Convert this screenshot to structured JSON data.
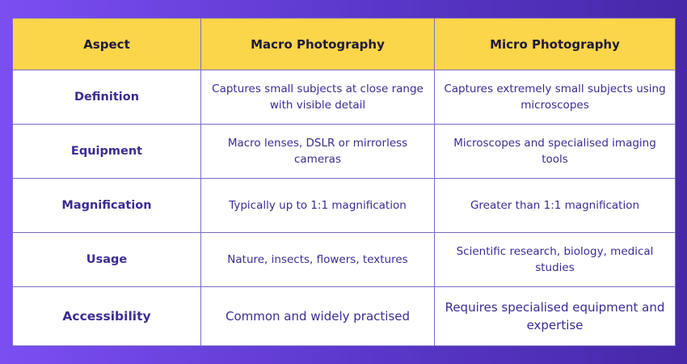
{
  "table": {
    "header": [
      "Aspect",
      "Macro Photography",
      "Micro Photography"
    ],
    "rows": [
      [
        "Definition",
        "Captures small subjects at close range with visible detail",
        "Captures extremely small subjects using microscopes"
      ],
      [
        "Equipment",
        "Macro lenses, DSLR or mirrorless cameras",
        "Microscopes and specialised imaging tools"
      ],
      [
        "Magnification",
        "Typically up to 1:1 magnification",
        "Greater than 1:1 magnification"
      ],
      [
        "Usage",
        "Nature, insects, flowers, textures",
        "Scientific research, biology, medical studies"
      ],
      [
        "Accessibility",
        "Common and widely practised",
        "Requires specialised equipment and expertise"
      ]
    ]
  }
}
